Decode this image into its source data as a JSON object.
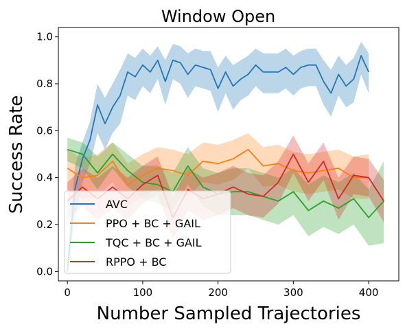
{
  "chart_data": {
    "type": "line",
    "title": "Window Open",
    "xlabel": "Number Sampled Trajectories",
    "ylabel": "Success Rate",
    "xlim": [
      -12,
      440
    ],
    "ylim": [
      -0.04,
      1.04
    ],
    "xticks": [
      0,
      100,
      200,
      300,
      400
    ],
    "yticks": [
      0.0,
      0.2,
      0.4,
      0.6,
      0.8,
      1.0
    ],
    "xtick_labels": [
      "0",
      "100",
      "200",
      "300",
      "400"
    ],
    "ytick_labels": [
      "0.0",
      "0.2",
      "0.4",
      "0.6",
      "0.8",
      "1.0"
    ],
    "grid": false,
    "legend_position": "lower-left",
    "series": [
      {
        "name": "AVC",
        "color": "#1f77b4",
        "band_color": "rgba(31,119,180,0.30)",
        "x": [
          0,
          10,
          20,
          30,
          40,
          50,
          60,
          70,
          80,
          90,
          100,
          110,
          120,
          130,
          140,
          150,
          160,
          170,
          180,
          190,
          200,
          210,
          220,
          230,
          240,
          250,
          260,
          270,
          280,
          290,
          300,
          310,
          320,
          330,
          340,
          350,
          360,
          370,
          380,
          390,
          400
        ],
        "y": [
          0.0,
          0.35,
          0.48,
          0.56,
          0.71,
          0.63,
          0.7,
          0.75,
          0.85,
          0.83,
          0.88,
          0.85,
          0.9,
          0.81,
          0.9,
          0.89,
          0.84,
          0.88,
          0.87,
          0.86,
          0.78,
          0.85,
          0.79,
          0.82,
          0.84,
          0.88,
          0.85,
          0.85,
          0.85,
          0.87,
          0.84,
          0.87,
          0.88,
          0.88,
          0.81,
          0.76,
          0.84,
          0.79,
          0.82,
          0.92,
          0.85
        ],
        "upper": [
          0.05,
          0.45,
          0.55,
          0.64,
          0.8,
          0.74,
          0.8,
          0.86,
          0.93,
          0.91,
          0.95,
          0.92,
          0.96,
          0.9,
          0.97,
          0.96,
          0.93,
          0.95,
          0.94,
          0.94,
          0.87,
          0.92,
          0.88,
          0.9,
          0.92,
          0.95,
          0.93,
          0.93,
          0.93,
          0.95,
          0.92,
          0.94,
          0.95,
          0.95,
          0.9,
          0.86,
          0.92,
          0.88,
          0.91,
          0.98,
          0.93
        ],
        "lower": [
          0.0,
          0.22,
          0.38,
          0.46,
          0.59,
          0.52,
          0.59,
          0.63,
          0.75,
          0.73,
          0.79,
          0.76,
          0.82,
          0.71,
          0.82,
          0.8,
          0.74,
          0.79,
          0.78,
          0.77,
          0.68,
          0.76,
          0.69,
          0.73,
          0.75,
          0.79,
          0.76,
          0.76,
          0.76,
          0.78,
          0.75,
          0.78,
          0.79,
          0.79,
          0.71,
          0.66,
          0.75,
          0.7,
          0.72,
          0.84,
          0.76
        ]
      },
      {
        "name": "PPO + BC + GAIL",
        "color": "#ff7f0e",
        "band_color": "rgba(255,127,14,0.28)",
        "x": [
          0,
          20,
          40,
          60,
          80,
          100,
          120,
          140,
          160,
          180,
          200,
          220,
          240,
          260,
          280,
          300,
          320,
          340,
          360,
          380,
          400
        ],
        "y": [
          0.44,
          0.4,
          0.41,
          0.47,
          0.37,
          0.41,
          0.44,
          0.43,
          0.41,
          0.47,
          0.46,
          0.48,
          0.52,
          0.45,
          0.46,
          0.43,
          0.42,
          0.43,
          0.44,
          0.4,
          0.4
        ],
        "upper": [
          0.52,
          0.48,
          0.5,
          0.55,
          0.46,
          0.5,
          0.53,
          0.52,
          0.5,
          0.55,
          0.54,
          0.56,
          0.59,
          0.53,
          0.54,
          0.51,
          0.5,
          0.51,
          0.52,
          0.49,
          0.5
        ],
        "lower": [
          0.35,
          0.31,
          0.32,
          0.38,
          0.28,
          0.32,
          0.35,
          0.34,
          0.32,
          0.38,
          0.37,
          0.39,
          0.44,
          0.36,
          0.37,
          0.34,
          0.33,
          0.34,
          0.35,
          0.31,
          0.31
        ]
      },
      {
        "name": "TQC + BC + GAIL",
        "color": "#2ca02c",
        "band_color": "rgba(44,160,44,0.30)",
        "x": [
          0,
          20,
          40,
          60,
          80,
          100,
          120,
          140,
          160,
          180,
          200,
          220,
          240,
          260,
          280,
          300,
          320,
          340,
          360,
          380,
          400,
          420
        ],
        "y": [
          0.52,
          0.5,
          0.42,
          0.5,
          0.43,
          0.38,
          0.37,
          0.34,
          0.45,
          0.36,
          0.33,
          0.34,
          0.34,
          0.32,
          0.3,
          0.34,
          0.26,
          0.3,
          0.27,
          0.31,
          0.23,
          0.3
        ],
        "upper": [
          0.57,
          0.55,
          0.49,
          0.55,
          0.5,
          0.45,
          0.45,
          0.42,
          0.53,
          0.44,
          0.42,
          0.44,
          0.44,
          0.42,
          0.4,
          0.44,
          0.37,
          0.41,
          0.38,
          0.42,
          0.35,
          0.47
        ],
        "lower": [
          0.47,
          0.44,
          0.35,
          0.44,
          0.36,
          0.31,
          0.29,
          0.26,
          0.37,
          0.28,
          0.24,
          0.24,
          0.24,
          0.22,
          0.2,
          0.24,
          0.15,
          0.19,
          0.16,
          0.2,
          0.11,
          0.12
        ]
      },
      {
        "name": "RPPO + BC",
        "color": "#d62728",
        "band_color": "rgba(214,39,40,0.30)",
        "x": [
          0,
          20,
          40,
          60,
          80,
          100,
          120,
          140,
          160,
          180,
          200,
          220,
          240,
          260,
          280,
          300,
          320,
          340,
          360,
          380,
          400,
          420
        ],
        "y": [
          0.3,
          0.36,
          0.31,
          0.36,
          0.31,
          0.37,
          0.41,
          0.23,
          0.35,
          0.31,
          0.33,
          0.36,
          0.33,
          0.32,
          0.38,
          0.5,
          0.38,
          0.47,
          0.31,
          0.41,
          0.4,
          0.3
        ],
        "upper": [
          0.38,
          0.44,
          0.4,
          0.45,
          0.4,
          0.45,
          0.49,
          0.32,
          0.44,
          0.4,
          0.42,
          0.45,
          0.42,
          0.41,
          0.47,
          0.58,
          0.46,
          0.55,
          0.4,
          0.49,
          0.48,
          0.39
        ],
        "lower": [
          0.22,
          0.28,
          0.22,
          0.27,
          0.22,
          0.29,
          0.33,
          0.14,
          0.26,
          0.22,
          0.24,
          0.27,
          0.24,
          0.23,
          0.29,
          0.42,
          0.3,
          0.39,
          0.22,
          0.33,
          0.32,
          0.21
        ]
      }
    ]
  }
}
